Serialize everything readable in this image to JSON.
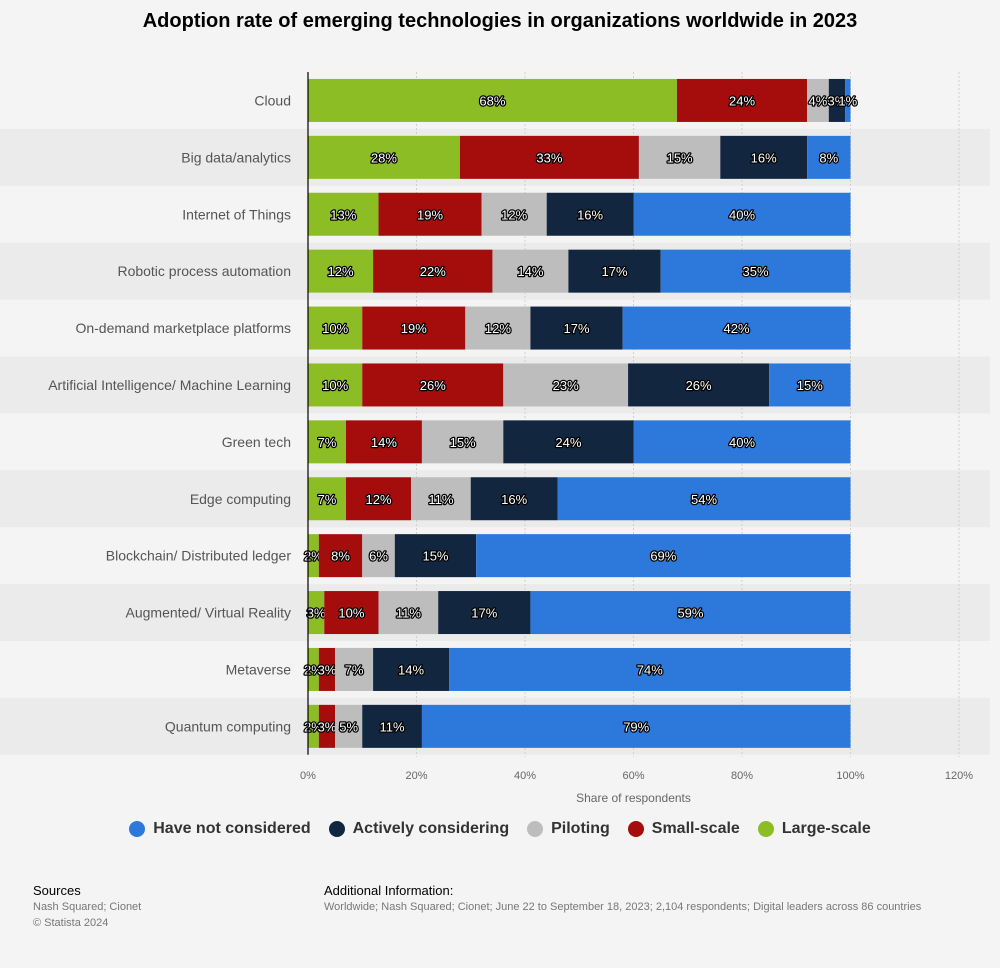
{
  "chart_data": {
    "type": "bar",
    "orientation": "horizontal",
    "stacked": true,
    "title": "Adoption rate of emerging technologies in organizations worldwide in 2023",
    "xlabel": "Share of respondents",
    "ylabel": "",
    "xlim": [
      0,
      120
    ],
    "xticks": [
      "0%",
      "20%",
      "40%",
      "60%",
      "80%",
      "100%",
      "120%"
    ],
    "grid": true,
    "legend_position": "bottom",
    "categories": [
      "Cloud",
      "Big data/analytics",
      "Internet of Things",
      "Robotic process automation",
      "On-demand marketplace platforms",
      "Artificial Intelligence/ Machine Learning",
      "Green tech",
      "Edge computing",
      "Blockchain/ Distributed ledger",
      "Augmented/ Virtual Reality",
      "Metaverse",
      "Quantum computing"
    ],
    "series": [
      {
        "name": "Large-scale",
        "color": "#8cbd25",
        "values": [
          68,
          28,
          13,
          12,
          10,
          10,
          7,
          7,
          2,
          3,
          2,
          2
        ]
      },
      {
        "name": "Small-scale",
        "color": "#a50d0d",
        "values": [
          24,
          33,
          19,
          22,
          19,
          26,
          14,
          12,
          8,
          10,
          3,
          3
        ]
      },
      {
        "name": "Piloting",
        "color": "#bdbdbd",
        "values": [
          4,
          15,
          12,
          14,
          12,
          23,
          15,
          11,
          6,
          11,
          7,
          5
        ]
      },
      {
        "name": "Actively considering",
        "color": "#12263f",
        "values": [
          3,
          16,
          16,
          17,
          17,
          26,
          24,
          16,
          15,
          17,
          14,
          11
        ]
      },
      {
        "name": "Have not considered",
        "color": "#2d78db",
        "values": [
          1,
          8,
          40,
          35,
          42,
          15,
          40,
          54,
          69,
          59,
          74,
          79
        ]
      }
    ],
    "legend_order": [
      "Have not considered",
      "Actively considering",
      "Piloting",
      "Small-scale",
      "Large-scale"
    ]
  },
  "sources": {
    "heading": "Sources",
    "lines": [
      "Nash Squared; Cionet",
      "© Statista 2024"
    ]
  },
  "additional_info": {
    "heading": "Additional Information:",
    "text": "Worldwide; Nash Squared; Cionet; June 22 to September 18, 2023; 2,104 respondents; Digital leaders across 86 countries"
  }
}
